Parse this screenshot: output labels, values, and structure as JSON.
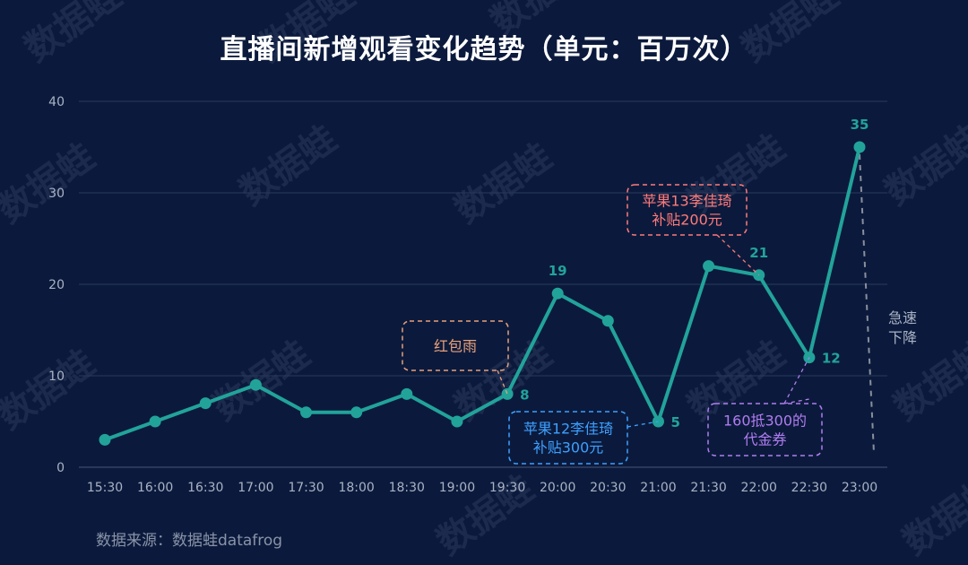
{
  "title": "直播间新增观看变化趋势（单元：百万次）",
  "source": "数据来源：数据蛙datafrog",
  "watermark": "数据蛙",
  "colors": {
    "background": "#0b1a3c",
    "line": "#22a39a",
    "grid": "#2a3a5c",
    "axis_text": "#aab2c4",
    "annotation_orange": "#e8a07a",
    "annotation_red": "#ff7a7a",
    "annotation_blue": "#3da0ff",
    "annotation_purple": "#b07cf0",
    "dashed_drop": "#8a8f9c"
  },
  "chart_data": {
    "type": "line",
    "title": "直播间新增观看变化趋势（单元：百万次）",
    "categories": [
      "15:30",
      "16:00",
      "16:30",
      "17:00",
      "17:30",
      "18:00",
      "18:30",
      "19:00",
      "19:30",
      "20:00",
      "20:30",
      "21:00",
      "21:30",
      "22:00",
      "22:30",
      "23:00"
    ],
    "series": [
      {
        "values": [
          3,
          5,
          7,
          9,
          6,
          6,
          8,
          5,
          8,
          19,
          16,
          5,
          22,
          21,
          12,
          35
        ]
      }
    ],
    "ylim": [
      0,
      40
    ],
    "yticks": [
      0,
      10,
      20,
      30,
      40
    ],
    "grid": true,
    "data_labels": [
      {
        "index": 8,
        "text": "8"
      },
      {
        "index": 9,
        "text": "19"
      },
      {
        "index": 11,
        "text": "5"
      },
      {
        "index": 13,
        "text": "21"
      },
      {
        "index": 14,
        "text": "12"
      },
      {
        "index": 15,
        "text": "35"
      }
    ],
    "annotations": [
      {
        "text": [
          "红包雨"
        ],
        "color_key": "annotation_orange",
        "target_index": 8
      },
      {
        "text": [
          "苹果12李佳琦",
          "补贴300元"
        ],
        "color_key": "annotation_blue",
        "target_index": 11
      },
      {
        "text": [
          "苹果13李佳琦",
          "补贴200元"
        ],
        "color_key": "annotation_red",
        "target_index": 13
      },
      {
        "text": [
          "160抵300的",
          "代金券"
        ],
        "color_key": "annotation_purple",
        "target_index": 14
      }
    ],
    "drop_note": [
      "急速",
      "下降"
    ]
  }
}
